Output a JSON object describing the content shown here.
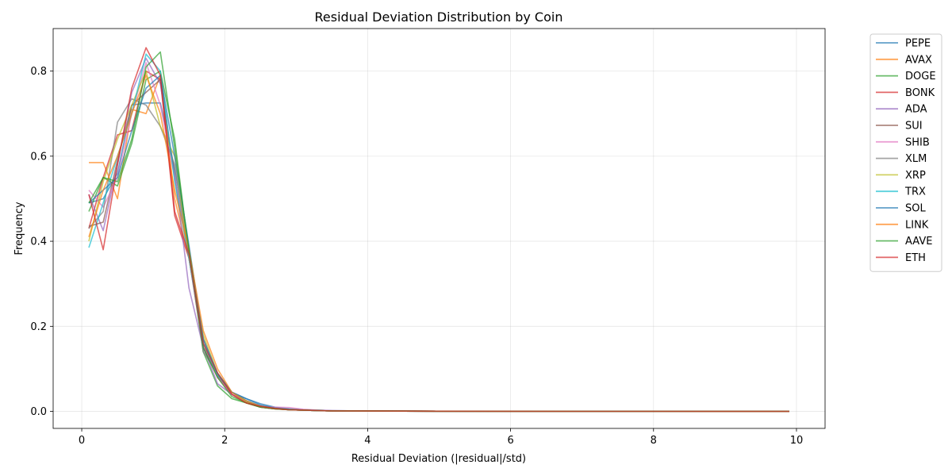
{
  "chart_data": {
    "type": "line",
    "title": "Residual Deviation Distribution by Coin",
    "xlabel": "Residual Deviation (|residual|/std)",
    "ylabel": "Frequency",
    "xlim": [
      -0.4,
      10.4
    ],
    "ylim": [
      -0.04,
      0.9
    ],
    "xticks": [
      0,
      2,
      4,
      6,
      8,
      10
    ],
    "yticks": [
      0.0,
      0.2,
      0.4,
      0.6,
      0.8
    ],
    "xtick_labels": [
      "0",
      "2",
      "4",
      "6",
      "8",
      "10"
    ],
    "ytick_labels": [
      "0.0",
      "0.2",
      "0.4",
      "0.6",
      "0.8"
    ],
    "grid": true,
    "legend_position": "outside-right-top",
    "x": [
      0.1,
      0.3,
      0.5,
      0.7,
      0.9,
      1.1,
      1.3,
      1.5,
      1.7,
      1.9,
      2.1,
      2.3,
      2.5,
      2.7,
      2.9,
      3.1,
      3.3,
      3.5,
      4.0,
      5.0,
      6.0,
      7.0,
      8.0,
      9.0,
      9.9
    ],
    "series": [
      {
        "name": "PEPE",
        "color": "#1f77b4",
        "values": [
          0.49,
          0.5,
          0.56,
          0.72,
          0.725,
          0.725,
          0.57,
          0.38,
          0.15,
          0.085,
          0.045,
          0.03,
          0.018,
          0.01,
          0.006,
          0.004,
          0.003,
          0.002,
          0.001,
          0.0005,
          0.0003,
          0.0002,
          0.0001,
          0.0001,
          0.0
        ]
      },
      {
        "name": "AVAX",
        "color": "#ff7f0e",
        "values": [
          0.585,
          0.585,
          0.5,
          0.71,
          0.7,
          0.79,
          0.5,
          0.36,
          0.16,
          0.08,
          0.04,
          0.02,
          0.01,
          0.006,
          0.004,
          0.003,
          0.002,
          0.001,
          0.0008,
          0.0004,
          0.0002,
          0.0001,
          0.0001,
          0.0,
          0.0
        ]
      },
      {
        "name": "DOGE",
        "color": "#2ca02c",
        "values": [
          0.47,
          0.55,
          0.53,
          0.63,
          0.78,
          0.8,
          0.64,
          0.37,
          0.14,
          0.06,
          0.03,
          0.02,
          0.01,
          0.006,
          0.004,
          0.003,
          0.002,
          0.001,
          0.0008,
          0.0004,
          0.0002,
          0.0001,
          0.0001,
          0.0,
          0.0
        ]
      },
      {
        "name": "BONK",
        "color": "#d62728",
        "values": [
          0.43,
          0.55,
          0.65,
          0.66,
          0.8,
          0.78,
          0.46,
          0.36,
          0.15,
          0.08,
          0.04,
          0.02,
          0.01,
          0.006,
          0.004,
          0.003,
          0.002,
          0.001,
          0.0008,
          0.0004,
          0.0002,
          0.0001,
          0.0001,
          0.0,
          0.0
        ]
      },
      {
        "name": "ADA",
        "color": "#9467bd",
        "values": [
          0.51,
          0.425,
          0.58,
          0.75,
          0.83,
          0.77,
          0.56,
          0.29,
          0.15,
          0.065,
          0.04,
          0.025,
          0.012,
          0.007,
          0.004,
          0.003,
          0.002,
          0.001,
          0.0008,
          0.0004,
          0.0002,
          0.0001,
          0.0001,
          0.0,
          0.0
        ]
      },
      {
        "name": "SUI",
        "color": "#8c564b",
        "values": [
          0.435,
          0.445,
          0.59,
          0.72,
          0.75,
          0.78,
          0.55,
          0.37,
          0.17,
          0.085,
          0.045,
          0.025,
          0.012,
          0.007,
          0.004,
          0.003,
          0.002,
          0.001,
          0.0008,
          0.0004,
          0.0002,
          0.0001,
          0.0001,
          0.0,
          0.0
        ]
      },
      {
        "name": "SHIB",
        "color": "#e377c2",
        "values": [
          0.52,
          0.48,
          0.55,
          0.7,
          0.82,
          0.72,
          0.55,
          0.36,
          0.16,
          0.08,
          0.04,
          0.022,
          0.012,
          0.01,
          0.009,
          0.005,
          0.003,
          0.002,
          0.001,
          0.0004,
          0.0002,
          0.0001,
          0.0001,
          0.0,
          0.0
        ]
      },
      {
        "name": "XLM",
        "color": "#7f7f7f",
        "values": [
          0.43,
          0.47,
          0.68,
          0.735,
          0.72,
          0.67,
          0.58,
          0.38,
          0.14,
          0.09,
          0.045,
          0.025,
          0.012,
          0.007,
          0.004,
          0.003,
          0.002,
          0.001,
          0.0008,
          0.0004,
          0.0002,
          0.0001,
          0.0001,
          0.0,
          0.0
        ]
      },
      {
        "name": "XRP",
        "color": "#bcbd22",
        "values": [
          0.4,
          0.54,
          0.64,
          0.72,
          0.8,
          0.67,
          0.6,
          0.36,
          0.18,
          0.09,
          0.045,
          0.022,
          0.012,
          0.007,
          0.004,
          0.003,
          0.002,
          0.001,
          0.0008,
          0.0004,
          0.0002,
          0.0001,
          0.0001,
          0.0,
          0.0
        ]
      },
      {
        "name": "TRX",
        "color": "#17becf",
        "values": [
          0.385,
          0.49,
          0.6,
          0.7,
          0.84,
          0.8,
          0.54,
          0.36,
          0.16,
          0.085,
          0.045,
          0.025,
          0.012,
          0.007,
          0.004,
          0.003,
          0.002,
          0.001,
          0.0008,
          0.0004,
          0.0002,
          0.0001,
          0.0001,
          0.0,
          0.0
        ]
      },
      {
        "name": "SOL",
        "color": "#1f77b4",
        "values": [
          0.49,
          0.52,
          0.55,
          0.66,
          0.76,
          0.79,
          0.6,
          0.39,
          0.17,
          0.09,
          0.045,
          0.03,
          0.015,
          0.008,
          0.005,
          0.003,
          0.002,
          0.001,
          0.0008,
          0.0004,
          0.0002,
          0.0001,
          0.0001,
          0.0,
          0.0
        ]
      },
      {
        "name": "LINK",
        "color": "#ff7f0e",
        "values": [
          0.41,
          0.52,
          0.6,
          0.7,
          0.79,
          0.7,
          0.52,
          0.38,
          0.19,
          0.1,
          0.045,
          0.025,
          0.012,
          0.007,
          0.004,
          0.003,
          0.002,
          0.001,
          0.0008,
          0.0004,
          0.0002,
          0.0001,
          0.0001,
          0.0,
          0.0
        ]
      },
      {
        "name": "AAVE",
        "color": "#2ca02c",
        "values": [
          0.49,
          0.55,
          0.54,
          0.64,
          0.81,
          0.845,
          0.62,
          0.38,
          0.15,
          0.08,
          0.035,
          0.02,
          0.01,
          0.006,
          0.004,
          0.003,
          0.002,
          0.001,
          0.0008,
          0.0004,
          0.0002,
          0.0001,
          0.0001,
          0.0,
          0.0
        ]
      },
      {
        "name": "ETH",
        "color": "#d62728",
        "values": [
          0.51,
          0.38,
          0.58,
          0.76,
          0.855,
          0.79,
          0.47,
          0.37,
          0.16,
          0.09,
          0.04,
          0.02,
          0.012,
          0.007,
          0.004,
          0.003,
          0.002,
          0.001,
          0.0008,
          0.0004,
          0.0002,
          0.0001,
          0.0001,
          0.0,
          0.0
        ]
      }
    ]
  }
}
